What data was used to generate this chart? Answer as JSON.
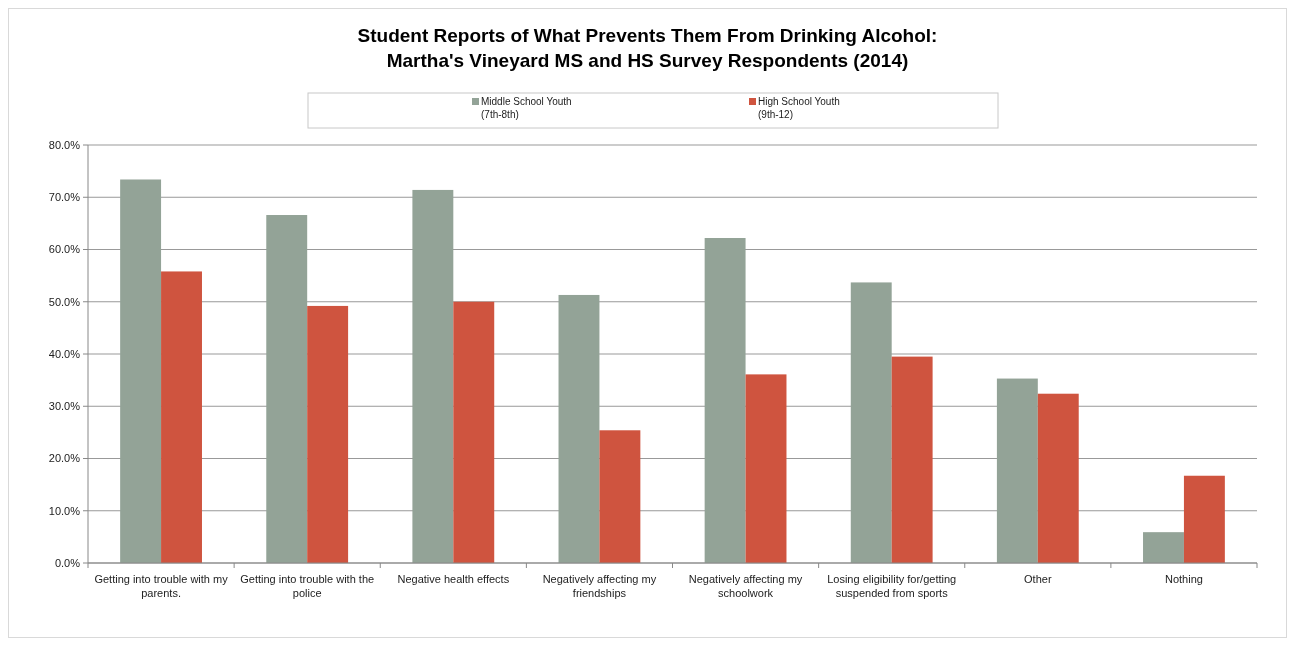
{
  "chart_data": {
    "type": "bar",
    "title": "Student Reports of What Prevents Them From Drinking Alcohol:\nMartha's Vineyard MS and HS Survey Respondents (2014)",
    "categories": [
      "Getting into trouble with my parents.",
      "Getting into trouble with the police",
      "Negative health effects",
      "Negatively affecting my friendships",
      "Negatively affecting my schoolwork",
      "Losing eligibility for/getting suspended from sports",
      "Other",
      "Nothing"
    ],
    "series": [
      {
        "name": "Middle School Youth\n(7th-8th)",
        "color": "#93a397",
        "values": [
          73.4,
          66.6,
          71.4,
          51.3,
          62.2,
          53.7,
          35.3,
          5.9
        ]
      },
      {
        "name": "High School Youth\n(9th-12)",
        "color": "#cf543f",
        "values": [
          55.8,
          49.2,
          50.0,
          25.4,
          36.1,
          39.5,
          32.4,
          16.7
        ]
      }
    ],
    "ylim": [
      0,
      80
    ],
    "yticks": [
      {
        "value": 0,
        "label": "0.0%"
      },
      {
        "value": 10,
        "label": "10.0%"
      },
      {
        "value": 20,
        "label": "20.0%"
      },
      {
        "value": 30,
        "label": "30.0%"
      },
      {
        "value": 40,
        "label": "40.0%"
      },
      {
        "value": 50,
        "label": "50.0%"
      },
      {
        "value": 60,
        "label": "60.0%"
      },
      {
        "value": 70,
        "label": "70.0%"
      },
      {
        "value": 80,
        "label": "80.0%"
      }
    ],
    "grid": "y",
    "legend": "top"
  }
}
